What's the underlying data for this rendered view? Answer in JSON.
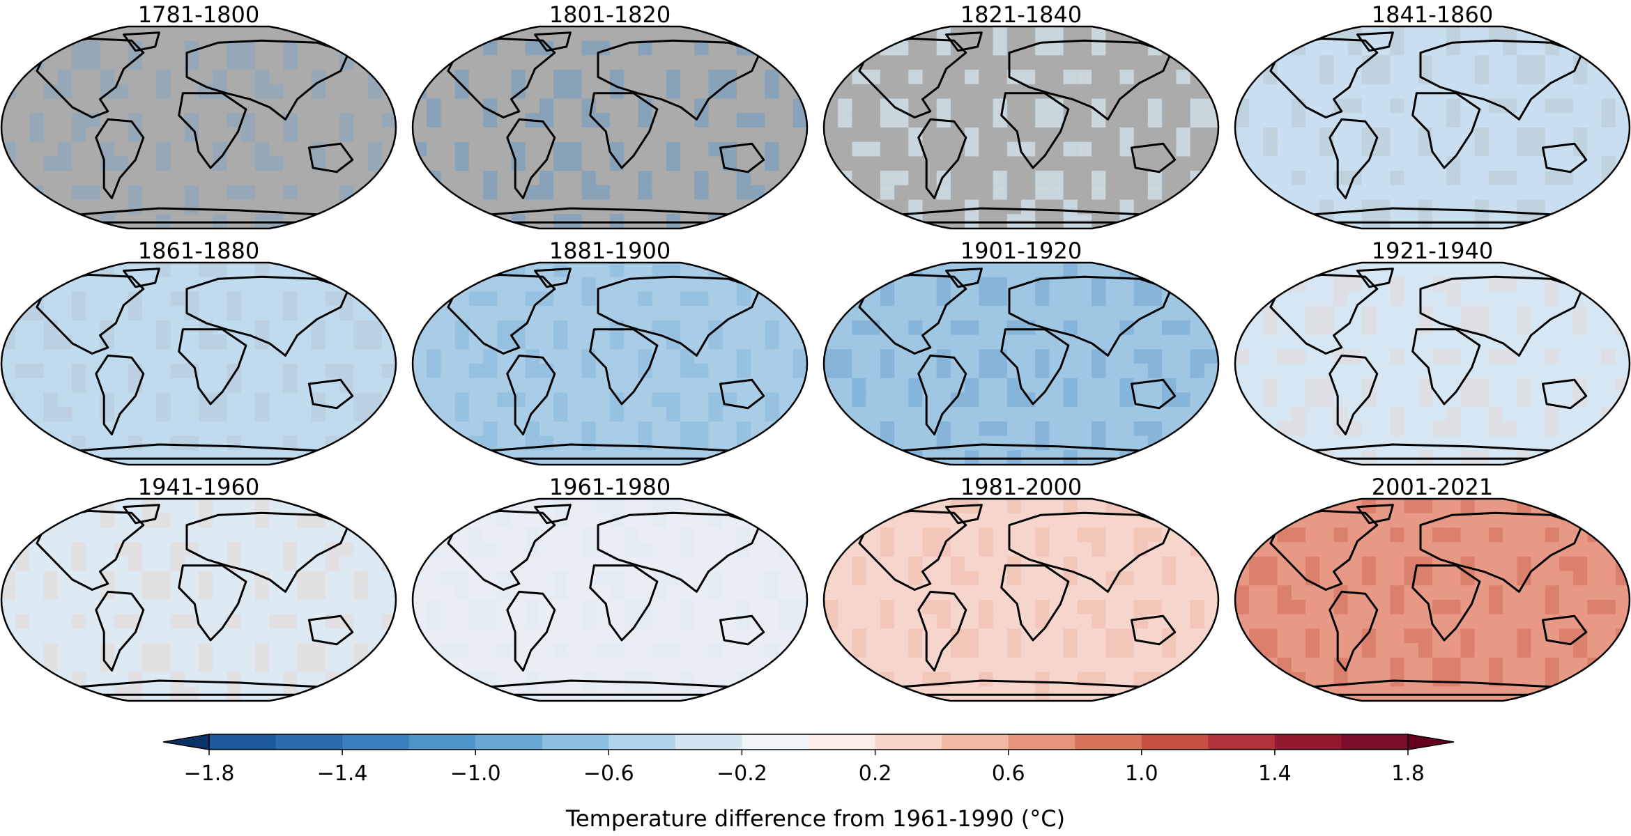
{
  "figure": {
    "panels": [
      {
        "title": "1781-1800",
        "fill": "#ababab",
        "tint": "#6fa3cf",
        "tint_opacity": 0.35
      },
      {
        "title": "1801-1820",
        "fill": "#ababab",
        "tint": "#5b97c9",
        "tint_opacity": 0.45
      },
      {
        "title": "1821-1840",
        "fill": "#ababab",
        "tint": "#d7e8f2",
        "tint_opacity": 0.7
      },
      {
        "title": "1841-1860",
        "fill": "#c9dff0",
        "tint": "#ababab",
        "tint_opacity": 0.25
      },
      {
        "title": "1861-1880",
        "fill": "#c0daee",
        "tint": "#ababab",
        "tint_opacity": 0.2
      },
      {
        "title": "1881-1900",
        "fill": "#a9cde6",
        "tint": "#4f90c6",
        "tint_opacity": 0.2
      },
      {
        "title": "1901-1920",
        "fill": "#9fc6e2",
        "tint": "#3a82c0",
        "tint_opacity": 0.25
      },
      {
        "title": "1921-1940",
        "fill": "#d6e7f3",
        "tint": "#f3c9b7",
        "tint_opacity": 0.25
      },
      {
        "title": "1941-1960",
        "fill": "#dde9f3",
        "tint": "#f4c6b3",
        "tint_opacity": 0.25
      },
      {
        "title": "1961-1980",
        "fill": "#e8eef4",
        "tint": "#d6e6f2",
        "tint_opacity": 0.3
      },
      {
        "title": "1981-2000",
        "fill": "#f6d6cc",
        "tint": "#e89a83",
        "tint_opacity": 0.25
      },
      {
        "title": "2001-2021",
        "fill": "#e79985",
        "tint": "#c44a3c",
        "tint_opacity": 0.3
      }
    ],
    "colorbar": {
      "label": "Temperature difference from 1961-1990 (°C)",
      "ticks": [
        "−1.8",
        "−1.4",
        "−1.0",
        "−0.6",
        "−0.2",
        "0.2",
        "0.6",
        "1.0",
        "1.4",
        "1.8"
      ],
      "tick_values": [
        -1.8,
        -1.4,
        -1.0,
        -0.6,
        -0.2,
        0.2,
        0.6,
        1.0,
        1.4,
        1.8
      ],
      "range": [
        -1.8,
        1.8
      ],
      "step": 0.2,
      "extend": "both",
      "under_color": "#0a3266",
      "over_color": "#67001f",
      "colors": [
        "#1c5a99",
        "#2b6cab",
        "#3b80bd",
        "#4e94c9",
        "#69a8d4",
        "#8cbfe0",
        "#b1d4ea",
        "#d3e6f2",
        "#eef4f8",
        "#fbeee8",
        "#f6d5c8",
        "#f0b7a2",
        "#e6957c",
        "#d8735b",
        "#c85043",
        "#b2323a",
        "#941a31",
        "#7a0d28"
      ]
    },
    "map_colors": {
      "no_data": "#ababab",
      "coastline": "#000000"
    }
  }
}
